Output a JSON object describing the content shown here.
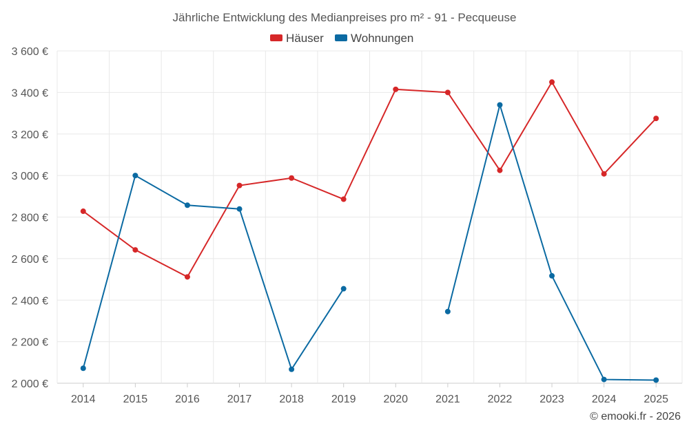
{
  "chart_data": {
    "type": "line",
    "title": "Jährliche Entwicklung des Medianpreises pro m² - 91 - Pecqueuse",
    "categories": [
      "2014",
      "2015",
      "2016",
      "2017",
      "2018",
      "2019",
      "2020",
      "2021",
      "2022",
      "2023",
      "2024",
      "2025"
    ],
    "ylim": [
      2000,
      3600
    ],
    "yticks": [
      2000,
      2200,
      2400,
      2600,
      2800,
      3000,
      3200,
      3400,
      3600
    ],
    "ytick_labels": [
      "2 000 €",
      "2 200 €",
      "2 400 €",
      "2 600 €",
      "2 800 €",
      "3 000 €",
      "3 200 €",
      "3 400 €",
      "3 600 €"
    ],
    "xlabel": "",
    "ylabel": "",
    "grid": true,
    "legend_position": "top-center",
    "series": [
      {
        "name": "Häuser",
        "color": "#d62728",
        "values": [
          2828,
          2642,
          2512,
          2952,
          2988,
          2886,
          3415,
          3400,
          3025,
          3450,
          3008,
          3275
        ]
      },
      {
        "name": "Wohnungen",
        "color": "#0b6aa2",
        "values": [
          2072,
          3000,
          2857,
          2839,
          2067,
          2455,
          null,
          2345,
          3340,
          2517,
          2018,
          2015
        ]
      }
    ]
  },
  "credit": "© emooki.fr - 2026"
}
